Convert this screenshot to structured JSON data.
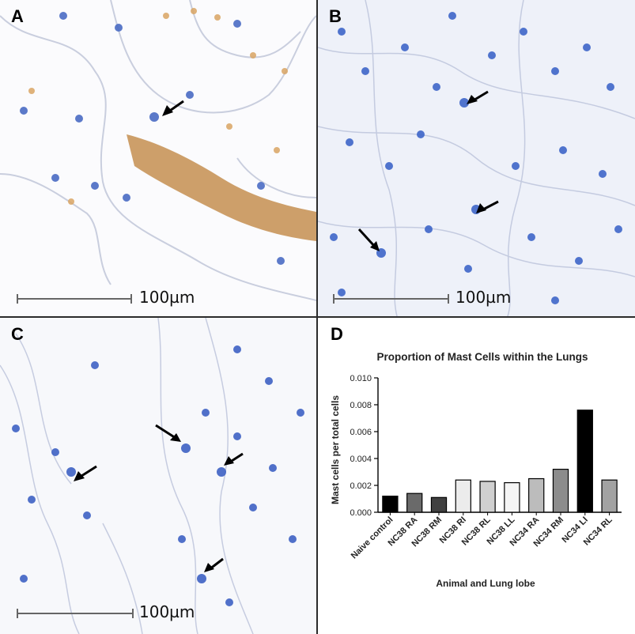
{
  "panels": {
    "a": {
      "letter": "A",
      "scale_bar": "100µm"
    },
    "b": {
      "letter": "B",
      "scale_bar": "100µm"
    },
    "c": {
      "letter": "C",
      "scale_bar": "100µm"
    },
    "d": {
      "letter": "D"
    }
  },
  "chart_data": {
    "type": "bar",
    "title": "Proportion of Mast Cells within the Lungs",
    "xlabel": "Animal and Lung lobe",
    "ylabel": "Mast cells per total cells",
    "ylim": [
      0,
      0.01
    ],
    "yticks": [
      "0.000",
      "0.002",
      "0.004",
      "0.006",
      "0.008",
      "0.010"
    ],
    "categories": [
      "Naive control",
      "NC38 RA",
      "NC38 RM",
      "NC38 RI",
      "NC38 RL",
      "NC38 LL",
      "NC34 RA",
      "NC34 RM",
      "NC34 LI",
      "NC34 RL"
    ],
    "values": [
      0.0012,
      0.0014,
      0.0011,
      0.0024,
      0.0023,
      0.0022,
      0.0025,
      0.0032,
      0.0076,
      0.0024
    ],
    "colors": [
      "#000000",
      "#6a6a6a",
      "#404040",
      "#ececec",
      "#d0d0d0",
      "#f5f5f5",
      "#bcbcbc",
      "#8c8c8c",
      "#000000",
      "#a2a2a2"
    ],
    "grid": false,
    "legend": "none"
  }
}
